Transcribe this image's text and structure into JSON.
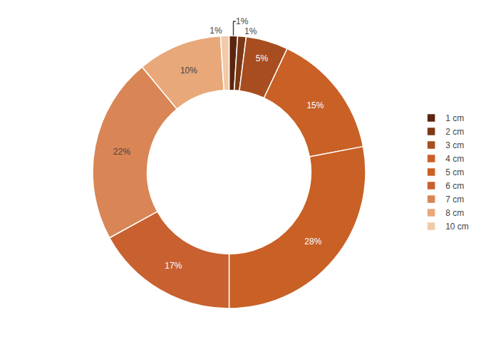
{
  "chart_data": {
    "type": "donut",
    "categories": [
      "1 cm",
      "2 cm",
      "3 cm",
      "4 cm",
      "5 cm",
      "6 cm",
      "7 cm",
      "8 cm",
      "10 cm"
    ],
    "values": [
      1,
      1,
      5,
      15,
      28,
      17,
      22,
      10,
      1
    ],
    "value_labels": [
      "1%",
      "1%",
      "5%",
      "15%",
      "28%",
      "17%",
      "22%",
      "10%",
      "1%"
    ],
    "colors": [
      "#5C2510",
      "#7B3A15",
      "#A84D20",
      "#C96025",
      "#C96025",
      "#C86030",
      "#D98555",
      "#E8A87A",
      "#F2CAA8"
    ],
    "data_labels": true,
    "legend": "right"
  }
}
